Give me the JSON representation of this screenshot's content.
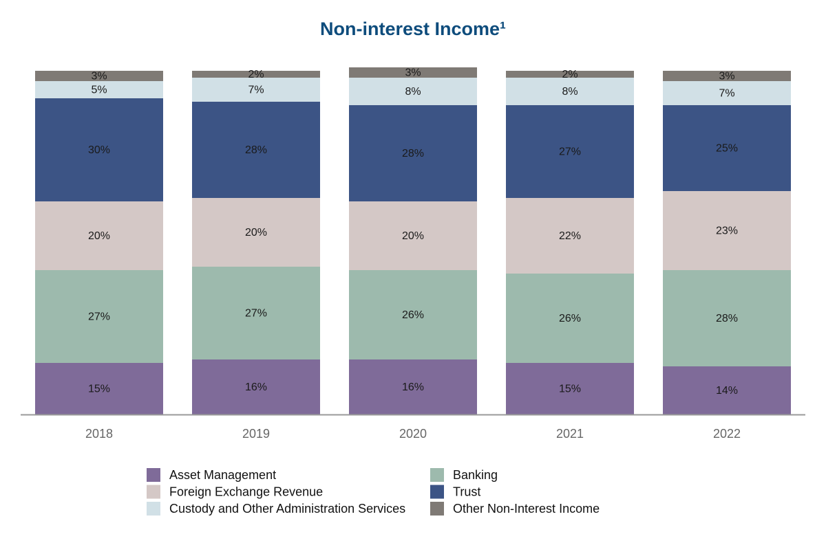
{
  "chart_data": {
    "type": "stacked_bar",
    "title": "Non-interest Income¹",
    "categories": [
      "2018",
      "2019",
      "2020",
      "2021",
      "2022"
    ],
    "series": [
      {
        "name": "Asset Management",
        "color": "#7f6b99",
        "values": [
          15,
          16,
          16,
          15,
          14
        ],
        "value_labels": [
          "15%",
          "16%",
          "16%",
          "15%",
          "14%"
        ]
      },
      {
        "name": "Banking",
        "color": "#9dbaad",
        "values": [
          27,
          27,
          26,
          26,
          28
        ],
        "value_labels": [
          "27%",
          "27%",
          "26%",
          "26%",
          "28%"
        ]
      },
      {
        "name": "Foreign Exchange Revenue",
        "color": "#d4c8c6",
        "values": [
          20,
          20,
          20,
          22,
          23
        ],
        "value_labels": [
          "20%",
          "20%",
          "20%",
          "22%",
          "23%"
        ]
      },
      {
        "name": "Trust",
        "color": "#3c5485",
        "values": [
          30,
          28,
          28,
          27,
          25
        ],
        "value_labels": [
          "30%",
          "28%",
          "28%",
          "27%",
          "25%"
        ]
      },
      {
        "name": "Custody and Other Administration Services",
        "color": "#d1e0e6",
        "values": [
          5,
          7,
          8,
          8,
          7
        ],
        "value_labels": [
          "5%",
          "7%",
          "8%",
          "8%",
          "7%"
        ]
      },
      {
        "name": "Other Non-Interest Income",
        "color": "#7f7a75",
        "values": [
          3,
          2,
          3,
          2,
          3
        ],
        "value_labels": [
          "3%",
          "2%",
          "3%",
          "2%",
          "3%"
        ]
      }
    ]
  }
}
